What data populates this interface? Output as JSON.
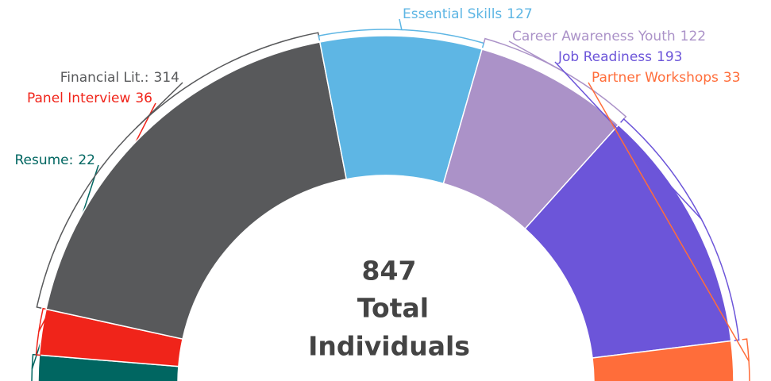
{
  "chart_data": {
    "type": "semi-donut",
    "categories": [
      "Resume:",
      "Panel Interview",
      "Financial Lit.:",
      "Essential Skills",
      "Career Awareness Youth",
      "Job Readiness",
      "Partner Workshops"
    ],
    "values": [
      22,
      36,
      314,
      127,
      122,
      193,
      33
    ],
    "colors": [
      "#006661",
      "#f0241a",
      "#58595b",
      "#5eb6e4",
      "#ab92c8",
      "#6c55d9",
      "#ff6d3a"
    ],
    "total": 847,
    "center_label": [
      "Total",
      "Individuals"
    ]
  }
}
